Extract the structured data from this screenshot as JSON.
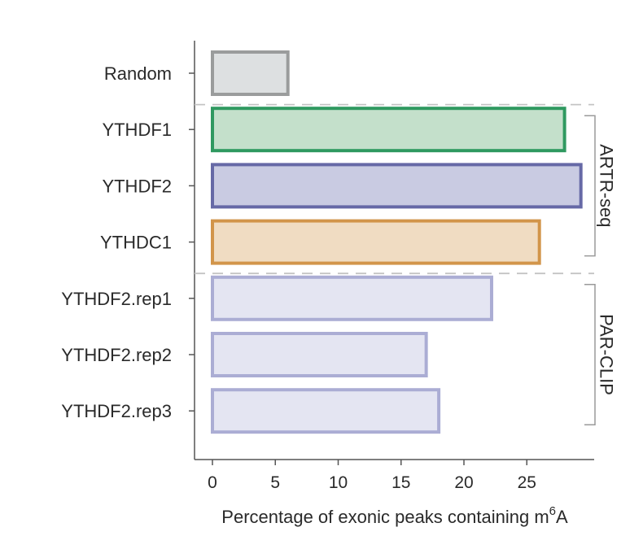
{
  "chart_data": {
    "type": "bar",
    "orientation": "horizontal",
    "categories": [
      "Random",
      "YTHDF1",
      "YTHDF2",
      "YTHDC1",
      "YTHDF2.rep1",
      "YTHDF2.rep2",
      "YTHDF2.rep3"
    ],
    "values": [
      6,
      28,
      29.3,
      26,
      22.2,
      17,
      18
    ],
    "x_ticks": [
      "0",
      "5",
      "10",
      "15",
      "20",
      "25"
    ],
    "xlim": [
      0,
      30
    ],
    "xlabel_main": "Percentage of exonic peaks containing m",
    "xlabel_sup": "6",
    "xlabel_tail": "A",
    "groups": [
      {
        "label": "ARTR-seq",
        "categories": [
          "YTHDF1",
          "YTHDF2",
          "YTHDC1"
        ]
      },
      {
        "label": "PAR-CLIP",
        "categories": [
          "YTHDF2.rep1",
          "YTHDF2.rep2",
          "YTHDF2.rep3"
        ]
      }
    ],
    "separators_after": [
      "Random",
      "YTHDC1"
    ],
    "bar_colors": [
      {
        "fill": "#dde0e1",
        "stroke": "#9a9c9c"
      },
      {
        "fill": "#c4e0cb",
        "stroke": "#2f9960"
      },
      {
        "fill": "#c9cbe2",
        "stroke": "#6669a6"
      },
      {
        "fill": "#f0dcc2",
        "stroke": "#d2954a"
      },
      {
        "fill": "#e4e5f2",
        "stroke": "#abadd4"
      },
      {
        "fill": "#e4e5f2",
        "stroke": "#abadd4"
      },
      {
        "fill": "#e4e5f2",
        "stroke": "#abadd4"
      }
    ],
    "grid": false,
    "legend": "none"
  }
}
